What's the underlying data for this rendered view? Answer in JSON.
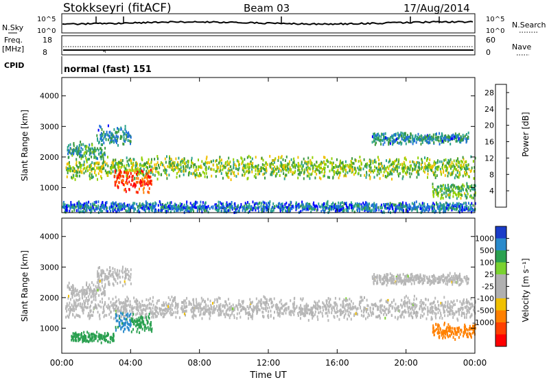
{
  "header": {
    "station": "Stokkseyri (fitACF)",
    "beam": "Beam 03",
    "date": "17/Aug/2014"
  },
  "side_labels": {
    "nsky": "N.Sky",
    "freq": "Freq.",
    "freq_unit": "[MHz]",
    "cpid": "CPID",
    "nsearch": "N.Search",
    "nave": "Nave"
  },
  "mode_label": "normal (fast) 151",
  "noise_ticks": {
    "top": "10^5",
    "bottom": "10^0"
  },
  "freq_ticks": {
    "top": "18",
    "bottom": "8"
  },
  "nave_ticks": {
    "top": "60",
    "bottom": "0"
  },
  "x_axis": {
    "label": "Time UT",
    "ticks": [
      "00:00",
      "04:00",
      "08:00",
      "12:00",
      "16:00",
      "20:00",
      "00:00"
    ]
  },
  "colors": {
    "power_scale": [
      "#0000ff",
      "#1e6fd9",
      "#2aa28a",
      "#3c9a3c",
      "#8fd000",
      "#f0c000",
      "#ff8000",
      "#ff4000",
      "#ff0000"
    ],
    "velocity_scale": [
      "#1a3cc8",
      "#2a8acb",
      "#2aa050",
      "#7ad230",
      "#b0b0b0",
      "#b0b0b0",
      "#f0c000",
      "#ff8000",
      "#ff4000",
      "#ff0000"
    ],
    "ground_scatter": "#b8b8b8"
  },
  "chart_data": [
    {
      "type": "heatmap",
      "name": "Power panel",
      "ylabel": "Slant Range [km]",
      "yticks": [
        "1000",
        "2000",
        "3000",
        "4000"
      ],
      "ylim": [
        180,
        4600
      ],
      "xlim_hours": [
        0,
        24
      ],
      "colorbar": {
        "label": "Power [dB]",
        "ticks": [
          "4",
          "8",
          "12",
          "16",
          "20",
          "24",
          "28"
        ],
        "range": [
          0,
          30
        ]
      },
      "echo_regions": [
        {
          "t_start": 0.2,
          "t_end": 24,
          "range_center_km": 1650,
          "range_width_km": 400,
          "value": 14
        },
        {
          "t_start": 3.0,
          "t_end": 5.2,
          "range_center_km": 1200,
          "range_width_km": 400,
          "value": 26
        },
        {
          "t_start": 0.3,
          "t_end": 2.5,
          "range_center_km": 2200,
          "range_width_km": 300,
          "value": 10
        },
        {
          "t_start": 2.0,
          "t_end": 4.0,
          "range_center_km": 2700,
          "range_width_km": 350,
          "value": 8
        },
        {
          "t_start": 18.0,
          "t_end": 23.6,
          "range_center_km": 2600,
          "range_width_km": 200,
          "value": 8
        },
        {
          "t_start": 21.5,
          "t_end": 24,
          "range_center_km": 900,
          "range_width_km": 300,
          "value": 12
        },
        {
          "t_start": 0,
          "t_end": 24,
          "range_center_km": 350,
          "range_width_km": 200,
          "value": 6
        }
      ]
    },
    {
      "type": "heatmap",
      "name": "Velocity panel",
      "ylabel": "Slant Range [km]",
      "yticks": [
        "1000",
        "2000",
        "3000",
        "4000"
      ],
      "ylim": [
        180,
        4600
      ],
      "xlim_hours": [
        0,
        24
      ],
      "colorbar": {
        "label": "Velocity [m s⁻¹]",
        "ticks": [
          "1000",
          "500",
          "100",
          "25",
          "-25",
          "-100",
          "-500",
          "-1000"
        ],
        "range": [
          -1000,
          1000
        ]
      },
      "echo_regions": [
        {
          "t_start": 0.2,
          "t_end": 24,
          "range_center_km": 1650,
          "range_width_km": 400,
          "value": 0
        },
        {
          "t_start": 3.0,
          "t_end": 4.0,
          "range_center_km": 1200,
          "range_width_km": 400,
          "value": 700
        },
        {
          "t_start": 4.0,
          "t_end": 5.2,
          "range_center_km": 1200,
          "range_width_km": 400,
          "value": 300
        },
        {
          "t_start": 0.3,
          "t_end": 2.5,
          "range_center_km": 2200,
          "range_width_km": 300,
          "value": 0
        },
        {
          "t_start": 2.0,
          "t_end": 4.0,
          "range_center_km": 2700,
          "range_width_km": 350,
          "value": 0
        },
        {
          "t_start": 18.0,
          "t_end": 23.6,
          "range_center_km": 2600,
          "range_width_km": 200,
          "value": 0
        },
        {
          "t_start": 21.5,
          "t_end": 24,
          "range_center_km": 900,
          "range_width_km": 300,
          "value": -200
        },
        {
          "t_start": 0.5,
          "t_end": 3.0,
          "range_center_km": 700,
          "range_width_km": 200,
          "value": 200
        }
      ]
    }
  ]
}
